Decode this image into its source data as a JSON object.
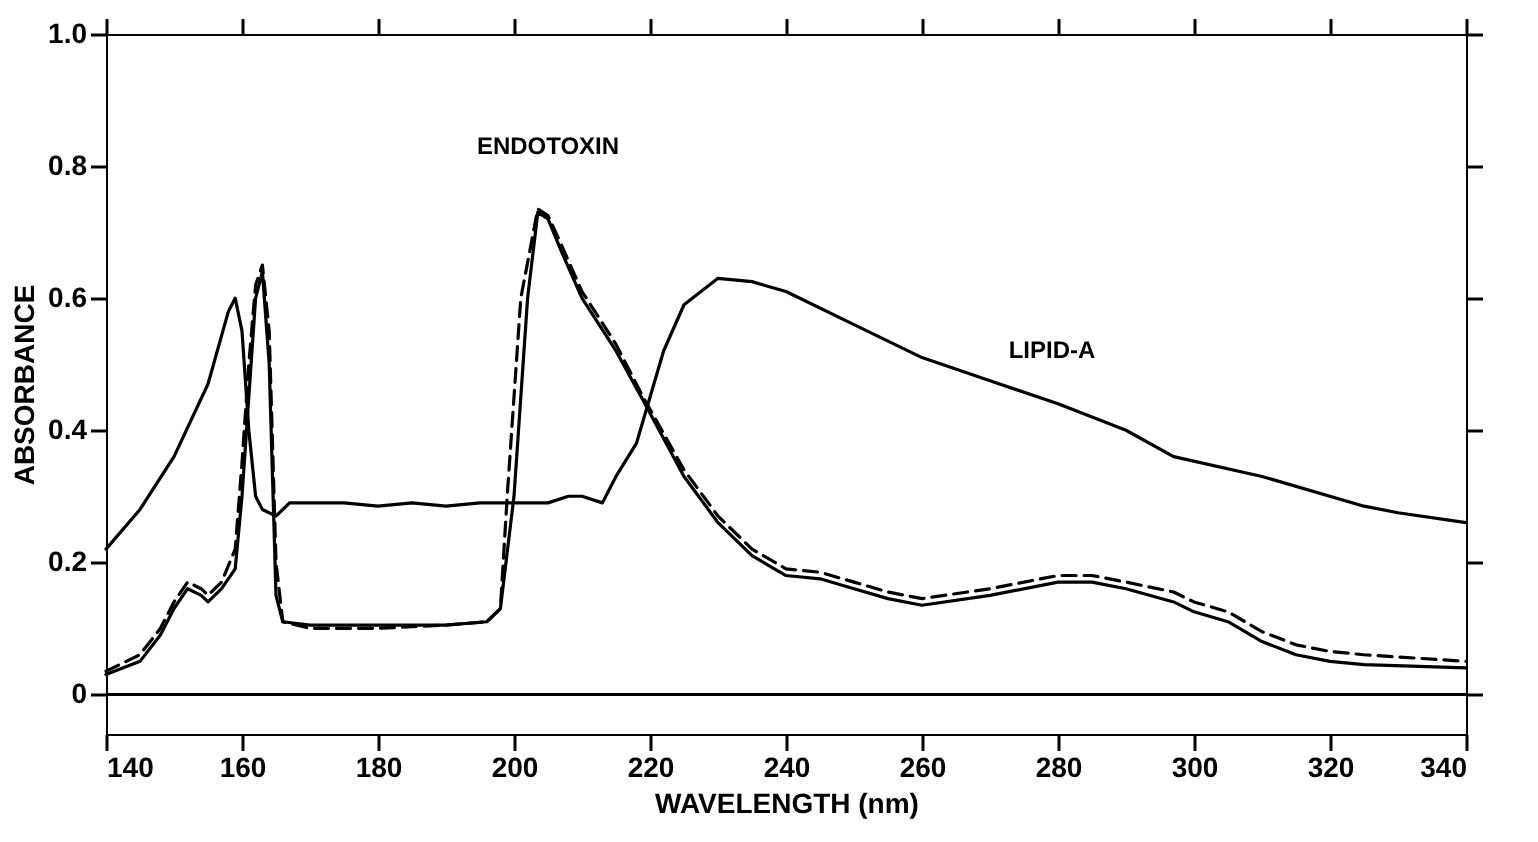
{
  "chart_data": {
    "type": "line",
    "xlabel": "WAVELENGTH (nm)",
    "ylabel": "ABSORBANCE",
    "xlim": [
      140,
      340
    ],
    "xticks": [
      140,
      160,
      180,
      200,
      220,
      240,
      260,
      280,
      300,
      320,
      340
    ],
    "ylim": [
      -0.06,
      1.0
    ],
    "yticks": [
      0,
      0.2,
      0.4,
      0.6,
      0.8,
      {
        "value": 1.0,
        "label": "1.0"
      }
    ],
    "grid": false,
    "marker": "none",
    "ref_lines": [
      {
        "axis": "y",
        "value": 0,
        "color": "#000000"
      }
    ],
    "annotations": [
      "ENDOTOXIN",
      "LIPID-A"
    ],
    "series": [
      {
        "color": "#000000",
        "line_style": "solid",
        "x": [
          140,
          145,
          150,
          155,
          158,
          159,
          160,
          161,
          162,
          163,
          165,
          167,
          170,
          175,
          180,
          185,
          190,
          195,
          200,
          205,
          208,
          210,
          213,
          215,
          218,
          220,
          222,
          225,
          230,
          235,
          240,
          250,
          260,
          270,
          280,
          290,
          297,
          310,
          325,
          330,
          340
        ],
        "values": [
          0.22,
          0.28,
          0.36,
          0.47,
          0.58,
          0.6,
          0.55,
          0.4,
          0.3,
          0.28,
          0.27,
          0.29,
          0.29,
          0.29,
          0.285,
          0.29,
          0.285,
          0.29,
          0.29,
          0.29,
          0.3,
          0.3,
          0.29,
          0.33,
          0.38,
          0.45,
          0.52,
          0.59,
          0.63,
          0.625,
          0.61,
          0.56,
          0.51,
          0.475,
          0.44,
          0.4,
          0.36,
          0.33,
          0.285,
          0.275,
          0.26
        ]
      },
      {
        "color": "#000000",
        "line_style": "solid",
        "x": [
          140,
          145,
          148,
          150,
          152,
          154,
          155,
          157,
          159,
          160,
          161,
          162,
          163,
          164,
          165,
          166,
          170,
          180,
          190,
          196,
          198,
          200,
          202,
          203.5,
          205,
          207,
          210,
          215,
          219,
          225,
          230,
          235,
          240,
          245,
          250,
          255,
          260,
          270,
          280,
          285,
          290,
          297,
          300,
          305,
          310,
          315,
          320,
          325,
          340
        ],
        "values": [
          0.03,
          0.05,
          0.09,
          0.13,
          0.16,
          0.15,
          0.14,
          0.16,
          0.19,
          0.3,
          0.45,
          0.6,
          0.64,
          0.5,
          0.15,
          0.11,
          0.105,
          0.105,
          0.105,
          0.11,
          0.13,
          0.3,
          0.6,
          0.73,
          0.72,
          0.67,
          0.6,
          0.52,
          0.445,
          0.33,
          0.26,
          0.21,
          0.18,
          0.175,
          0.16,
          0.145,
          0.135,
          0.15,
          0.17,
          0.17,
          0.16,
          0.14,
          0.125,
          0.11,
          0.08,
          0.06,
          0.05,
          0.045,
          0.04
        ]
      },
      {
        "color": "#000000",
        "line_style": "dashed",
        "x": [
          140,
          145,
          148,
          150,
          152,
          154,
          155,
          157,
          159,
          160,
          161,
          162,
          163,
          164,
          165,
          166,
          170,
          180,
          190,
          196,
          198,
          199,
          201,
          203.5,
          205,
          207,
          210,
          215,
          219,
          225,
          230,
          235,
          240,
          245,
          250,
          255,
          260,
          270,
          280,
          285,
          290,
          297,
          300,
          305,
          310,
          315,
          320,
          325,
          340
        ],
        "values": [
          0.035,
          0.06,
          0.1,
          0.14,
          0.17,
          0.16,
          0.15,
          0.17,
          0.22,
          0.35,
          0.5,
          0.62,
          0.65,
          0.55,
          0.2,
          0.11,
          0.1,
          0.1,
          0.105,
          0.11,
          0.13,
          0.3,
          0.6,
          0.735,
          0.725,
          0.68,
          0.61,
          0.53,
          0.45,
          0.34,
          0.27,
          0.22,
          0.19,
          0.185,
          0.17,
          0.155,
          0.145,
          0.16,
          0.18,
          0.18,
          0.17,
          0.155,
          0.14,
          0.125,
          0.095,
          0.075,
          0.065,
          0.06,
          0.05
        ]
      }
    ]
  }
}
